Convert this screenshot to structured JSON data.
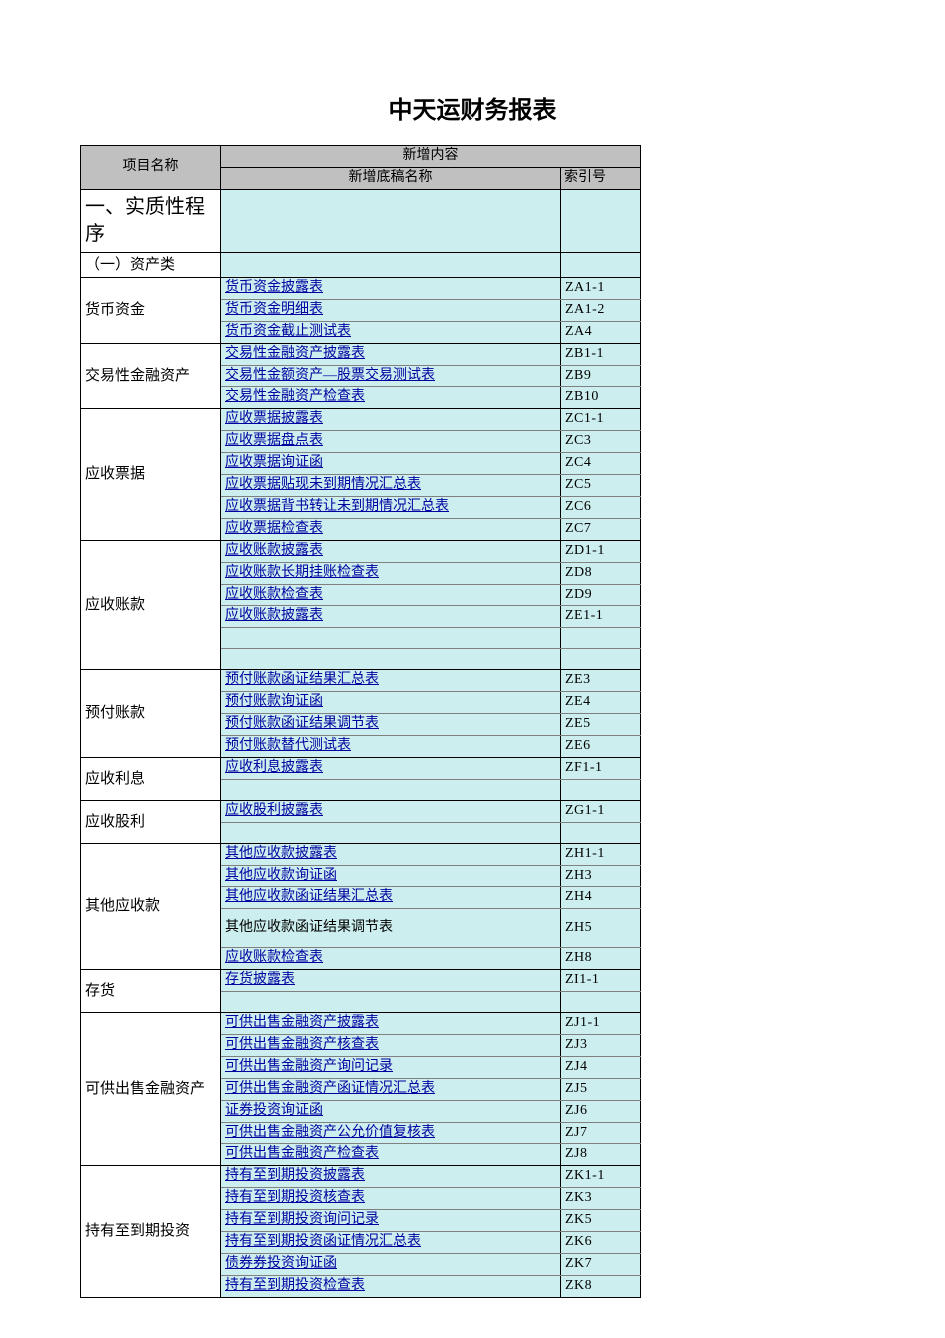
{
  "title": "中天运财务报表",
  "columns": {
    "project": "项目名称",
    "newcontent": "新增内容",
    "docname": "新增底稿名称",
    "index": "索引号"
  },
  "colors": {
    "header_bg": "#c0c0c0",
    "data_bg": "#cceeee",
    "link_color": "#0000a0",
    "border_main": "#000000",
    "border_inner": "#808080"
  },
  "section_heading": "一、实质性程序",
  "subsection_heading": "（一）资产类",
  "groups": [
    {
      "project": "货币资金",
      "rows": [
        {
          "name": "货币资金披露表",
          "idx": "ZA1-1",
          "link": true
        },
        {
          "name": "货币资金明细表",
          "idx": "ZA1-2",
          "link": true
        },
        {
          "name": "货币资金截止测试表",
          "idx": "ZA4",
          "link": true
        }
      ]
    },
    {
      "project": "交易性金融资产",
      "rows": [
        {
          "name": "交易性金融资产披露表",
          "idx": "ZB1-1",
          "link": true
        },
        {
          "name": "交易性金额资产—股票交易测试表",
          "idx": "ZB9",
          "link": true
        },
        {
          "name": "交易性金融资产检查表",
          "idx": "ZB10",
          "link": true
        }
      ]
    },
    {
      "project": "应收票据",
      "rows": [
        {
          "name": "应收票据披露表",
          "idx": "ZC1-1",
          "link": true
        },
        {
          "name": "应收票据盘点表",
          "idx": "ZC3",
          "link": true
        },
        {
          "name": "应收票据询证函",
          "idx": "ZC4",
          "link": true
        },
        {
          "name": "应收票据贴现未到期情况汇总表",
          "idx": "ZC5",
          "link": true
        },
        {
          "name": "应收票据背书转让未到期情况汇总表",
          "idx": "ZC6",
          "link": true
        },
        {
          "name": "应收票据检查表",
          "idx": "ZC7",
          "link": true
        }
      ]
    },
    {
      "project": "应收账款",
      "rows": [
        {
          "name": "应收账款披露表",
          "idx": "ZD1-1",
          "link": true
        },
        {
          "name": "应收账款长期挂账检查表",
          "idx": "ZD8",
          "link": true
        },
        {
          "name": "应收账款检查表",
          "idx": "ZD9",
          "link": true
        },
        {
          "name": "应收账款披露表",
          "idx": "ZE1-1",
          "link": true
        },
        {
          "name": "",
          "idx": "",
          "link": false
        },
        {
          "name": "",
          "idx": "",
          "link": false
        }
      ]
    },
    {
      "project": "预付账款",
      "rows": [
        {
          "name": "预付账款函证结果汇总表",
          "idx": "ZE3",
          "link": true
        },
        {
          "name": "预付账款询证函",
          "idx": "ZE4",
          "link": true
        },
        {
          "name": "预付账款函证结果调节表",
          "idx": "ZE5",
          "link": true
        },
        {
          "name": "预付账款替代测试表",
          "idx": "ZE6",
          "link": true
        }
      ]
    },
    {
      "project": "应收利息",
      "rows": [
        {
          "name": "应收利息披露表",
          "idx": "ZF1-1",
          "link": true
        },
        {
          "name": "",
          "idx": "",
          "link": false
        }
      ]
    },
    {
      "project": "应收股利",
      "rows": [
        {
          "name": "应收股利披露表",
          "idx": "ZG1-1",
          "link": true
        },
        {
          "name": "",
          "idx": "",
          "link": false
        }
      ]
    },
    {
      "project": "其他应收款",
      "rows": [
        {
          "name": "其他应收款披露表",
          "idx": "ZH1-1",
          "link": true
        },
        {
          "name": "其他应收款询证函",
          "idx": "ZH3",
          "link": true
        },
        {
          "name": "其他应收款函证结果汇总表",
          "idx": "ZH4",
          "link": true
        },
        {
          "name": "其他应收款函证结果调节表",
          "idx": "ZH5",
          "link": false,
          "tall": true
        },
        {
          "name": "应收账款检查表",
          "idx": "ZH8",
          "link": true
        }
      ]
    },
    {
      "project": "存货",
      "rows": [
        {
          "name": "存货披露表",
          "idx": "ZI1-1",
          "link": true
        },
        {
          "name": "",
          "idx": "",
          "link": false
        }
      ]
    },
    {
      "project": "可供出售金融资产",
      "rows": [
        {
          "name": "可供出售金融资产披露表",
          "idx": "ZJ1-1",
          "link": true
        },
        {
          "name": "可供出售金融资产核查表",
          "idx": "ZJ3",
          "link": true
        },
        {
          "name": "可供出售金融资产询问记录",
          "idx": "ZJ4",
          "link": true
        },
        {
          "name": "可供出售金融资产函证情况汇总表",
          "idx": "ZJ5",
          "link": true
        },
        {
          "name": "证券投资询证函",
          "idx": "ZJ6",
          "link": true
        },
        {
          "name": "可供出售金融资产公允价值复核表",
          "idx": "ZJ7",
          "link": true
        },
        {
          "name": "可供出售金融资产检查表",
          "idx": "ZJ8",
          "link": true
        }
      ]
    },
    {
      "project": "持有至到期投资",
      "rows": [
        {
          "name": "持有至到期投资披露表",
          "idx": "ZK1-1",
          "link": true
        },
        {
          "name": "持有至到期投资核查表",
          "idx": "ZK3",
          "link": true
        },
        {
          "name": "持有至到期投资询问记录",
          "idx": "ZK5",
          "link": true
        },
        {
          "name": "持有至到期投资函证情况汇总表",
          "idx": "ZK6",
          "link": true
        },
        {
          "name": "债券券投资询证函",
          "idx": "ZK7",
          "link": true
        },
        {
          "name": "持有至到期投资检查表",
          "idx": "ZK8",
          "link": true
        }
      ]
    }
  ]
}
